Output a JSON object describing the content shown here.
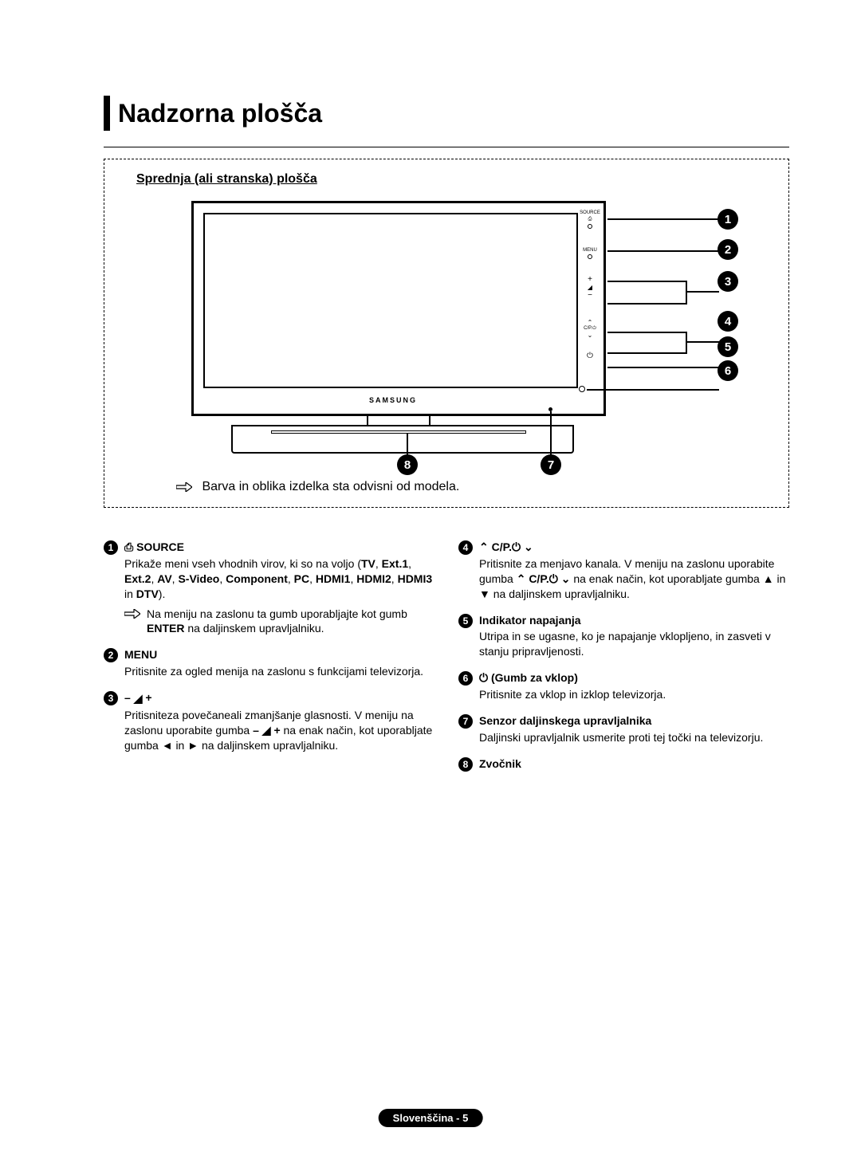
{
  "title": "Nadzorna plošča",
  "subheading": "Sprednja (ali stranska) plošča",
  "tv_brand": "SAMSUNG",
  "panel_buttons": {
    "source": "SOURCE",
    "menu": "MENU",
    "plus": "+",
    "minus": "−",
    "cp": "C/P.⏻",
    "up": "⌃",
    "down": "⌄",
    "power": "⏻"
  },
  "callout_labels": {
    "n1": "1",
    "n2": "2",
    "n3": "3",
    "n4": "4",
    "n5": "5",
    "n6": "6",
    "n7": "7",
    "n8": "8"
  },
  "box_note": "Barva in oblika izdelka sta odvisni od modela.",
  "items_left": [
    {
      "num": "1",
      "title_prefix_icon": "⎙",
      "title": "SOURCE",
      "body_html": "Prikaže meni vseh vhodnih virov, ki so na voljo (<b>TV</b>, <b>Ext.1</b>, <b>Ext.2</b>, <b>AV</b>, <b>S-Video</b>, <b>Component</b>, <b>PC</b>, <b>HDMI1</b>, <b>HDMI2</b>, <b>HDMI3</b> in <b>DTV</b>).",
      "subnote": "Na meniju na zaslonu ta gumb uporabljajte kot gumb <b>ENTER</b> na daljinskem upravljalniku."
    },
    {
      "num": "2",
      "title": "MENU",
      "body_html": "Pritisnite za ogled menija na zaslonu s funkcijami televizorja."
    },
    {
      "num": "3",
      "title_is_volume": true,
      "body_html": "Pritisniteza povečaneali zmanjšanje glasnosti. V meniju na zaslonu uporabite gumba <b>– ◢ +</b> na enak način, kot uporabljate gumba ◄ in ► na daljinskem upravljalniku."
    }
  ],
  "items_right": [
    {
      "num": "4",
      "title_cp": true,
      "body_html": "Pritisnite za menjavo kanala. V meniju na zaslonu uporabite gumba <b>⌃ C/P.⏻ ⌄</b> na enak način, kot uporabljate gumba ▲ in ▼ na daljinskem upravljalniku."
    },
    {
      "num": "5",
      "title": "Indikator napajanja",
      "body_html": "Utripa in se ugasne, ko je napajanje vklopljeno, in zasveti v stanju pripravljenosti."
    },
    {
      "num": "6",
      "title_prefix_icon": "⏻",
      "title": "(Gumb za vklop)",
      "body_html": "Pritisnite za vklop in izklop televizorja."
    },
    {
      "num": "7",
      "title": "Senzor daljinskega upravljalnika",
      "body_html": "Daljinski upravljalnik usmerite proti tej točki na televizorju."
    },
    {
      "num": "8",
      "title": "Zvočnik",
      "body_html": ""
    }
  ],
  "footer": "Slovenščina - 5",
  "colors": {
    "bg": "#ffffff",
    "text": "#000000",
    "circle_bg": "#000000",
    "circle_fg": "#ffffff"
  }
}
